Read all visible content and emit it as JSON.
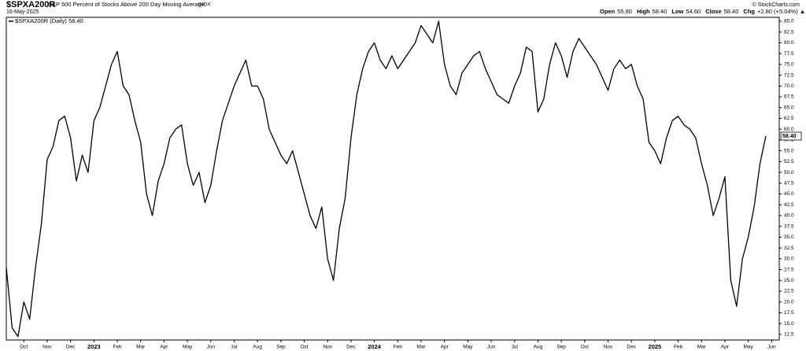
{
  "chart_data": {
    "type": "line",
    "symbol": "$SPXA200R",
    "title": "S&P 500 Percent of Stocks Above 200 Day Moving Average",
    "exchange": "INDX",
    "date": "16-May-2025",
    "credit": "© StockCharts.com",
    "quote": [
      {
        "label": "Open",
        "value": "55.80"
      },
      {
        "label": "High",
        "value": "58.40"
      },
      {
        "label": "Low",
        "value": "54.60"
      },
      {
        "label": "Close",
        "value": "58.40"
      },
      {
        "label": "Chg",
        "value": "+2.80 (+5.04%) ▲"
      }
    ],
    "series": [
      {
        "name": "$SPXA200R (Daily) 58.40",
        "color": "#000000",
        "values": [
          28,
          14,
          12,
          20,
          16,
          28,
          38,
          53,
          56,
          62,
          63,
          58,
          48,
          54,
          50,
          62,
          65,
          70,
          75,
          78,
          70,
          68,
          62,
          57,
          45,
          40,
          48,
          52,
          58,
          60,
          61,
          52,
          47,
          50,
          43,
          47,
          55,
          62,
          66,
          70,
          73,
          76,
          70,
          70,
          67,
          60,
          57,
          54,
          52,
          55,
          50,
          45,
          40,
          37,
          42,
          30,
          25,
          37,
          44,
          58,
          68,
          74,
          78,
          80,
          76,
          74,
          77,
          74,
          76,
          78,
          80,
          84,
          82,
          80,
          85,
          75,
          70,
          68,
          73,
          75,
          77,
          78,
          74,
          71,
          68,
          67,
          66,
          70,
          73,
          79,
          78,
          64,
          67,
          75,
          80,
          77,
          72,
          78,
          81,
          79,
          77,
          75,
          72,
          69,
          74,
          76,
          74,
          75,
          70,
          67,
          57,
          55,
          52,
          58,
          62,
          63,
          61,
          60,
          58,
          52,
          47,
          40,
          44,
          49,
          25,
          19,
          30,
          35,
          42,
          52,
          58.4
        ],
        "value_labels": [
          null,
          null,
          null,
          null,
          null,
          null,
          null,
          null,
          null,
          null,
          null,
          null,
          null,
          null,
          null,
          null,
          null,
          null,
          null,
          null,
          null,
          null,
          null,
          null,
          null,
          null,
          null,
          null,
          null,
          null,
          null,
          null,
          null,
          null,
          null,
          null,
          null,
          null,
          null,
          null,
          null,
          null,
          null,
          null,
          null,
          null,
          null,
          null,
          null,
          null,
          null,
          null,
          null,
          null,
          null,
          null,
          null,
          null,
          null,
          null,
          null,
          null,
          null,
          null,
          null,
          null,
          null,
          null,
          null,
          null,
          null,
          null,
          null,
          null,
          null,
          null,
          null,
          null,
          null,
          null,
          null,
          null,
          null,
          null,
          null,
          null,
          null,
          null,
          null,
          null,
          null,
          null,
          null,
          null,
          null,
          null,
          null,
          null,
          null,
          null,
          null,
          null,
          null,
          null,
          null,
          null,
          null,
          null,
          null,
          null,
          null,
          null,
          null,
          null,
          null,
          null,
          null,
          null,
          null,
          null,
          null,
          null,
          null,
          null,
          null,
          null,
          null,
          null,
          null,
          null,
          "58.40"
        ]
      }
    ],
    "xlim": [
      0,
      132.3
    ],
    "xticks": [
      {
        "value": 3,
        "label": "Oct"
      },
      {
        "value": 7,
        "label": "Nov"
      },
      {
        "value": 11,
        "label": "Dec"
      },
      {
        "value": 15,
        "label": "2023"
      },
      {
        "value": 19,
        "label": "Feb"
      },
      {
        "value": 23,
        "label": "Mar"
      },
      {
        "value": 27,
        "label": "Apr"
      },
      {
        "value": 31,
        "label": "May"
      },
      {
        "value": 35,
        "label": "Jun"
      },
      {
        "value": 39,
        "label": "Jul"
      },
      {
        "value": 43,
        "label": "Aug"
      },
      {
        "value": 47,
        "label": "Sep"
      },
      {
        "value": 51,
        "label": "Oct"
      },
      {
        "value": 55,
        "label": "Nov"
      },
      {
        "value": 59,
        "label": "Dec"
      },
      {
        "value": 63,
        "label": "2024"
      },
      {
        "value": 67,
        "label": "Feb"
      },
      {
        "value": 71,
        "label": "Mar"
      },
      {
        "value": 75,
        "label": "Apr"
      },
      {
        "value": 79,
        "label": "May"
      },
      {
        "value": 83,
        "label": "Jun"
      },
      {
        "value": 87,
        "label": "Jul"
      },
      {
        "value": 91,
        "label": "Aug"
      },
      {
        "value": 95,
        "label": "Sep"
      },
      {
        "value": 99,
        "label": "Oct"
      },
      {
        "value": 103,
        "label": "Nov"
      },
      {
        "value": 107,
        "label": "Dec"
      },
      {
        "value": 111,
        "label": "2025"
      },
      {
        "value": 115,
        "label": "Feb"
      },
      {
        "value": 119,
        "label": "Mar"
      },
      {
        "value": 123,
        "label": "Apr"
      },
      {
        "value": 127,
        "label": "May"
      },
      {
        "value": 131,
        "label": "Jun"
      }
    ],
    "ylim": [
      11.2,
      85.9
    ],
    "yticks": [
      12.5,
      {
        "value": 15,
        "label": "15.0"
      },
      17.5,
      {
        "value": 20,
        "label": "20.0"
      },
      22.5,
      {
        "value": 25,
        "label": "25.0"
      },
      27.5,
      {
        "value": 30,
        "label": "30.0"
      },
      32.5,
      {
        "value": 35,
        "label": "35.0"
      },
      37.5,
      {
        "value": 40,
        "label": "40.0"
      },
      42.5,
      {
        "value": 45,
        "label": "45.0"
      },
      47.5,
      {
        "value": 50,
        "label": "50.0"
      },
      52.5,
      {
        "value": 55,
        "label": "55.0"
      },
      57.5,
      {
        "value": 60,
        "label": "60.0"
      },
      62.5,
      {
        "value": 65,
        "label": "65.0"
      },
      67.5,
      {
        "value": 70,
        "label": "70.0"
      },
      72.5,
      {
        "value": 75,
        "label": "75.0"
      },
      77.5,
      {
        "value": 80,
        "label": "80.0"
      },
      82.5,
      {
        "value": 85,
        "label": "85.0"
      }
    ],
    "grid": false
  }
}
